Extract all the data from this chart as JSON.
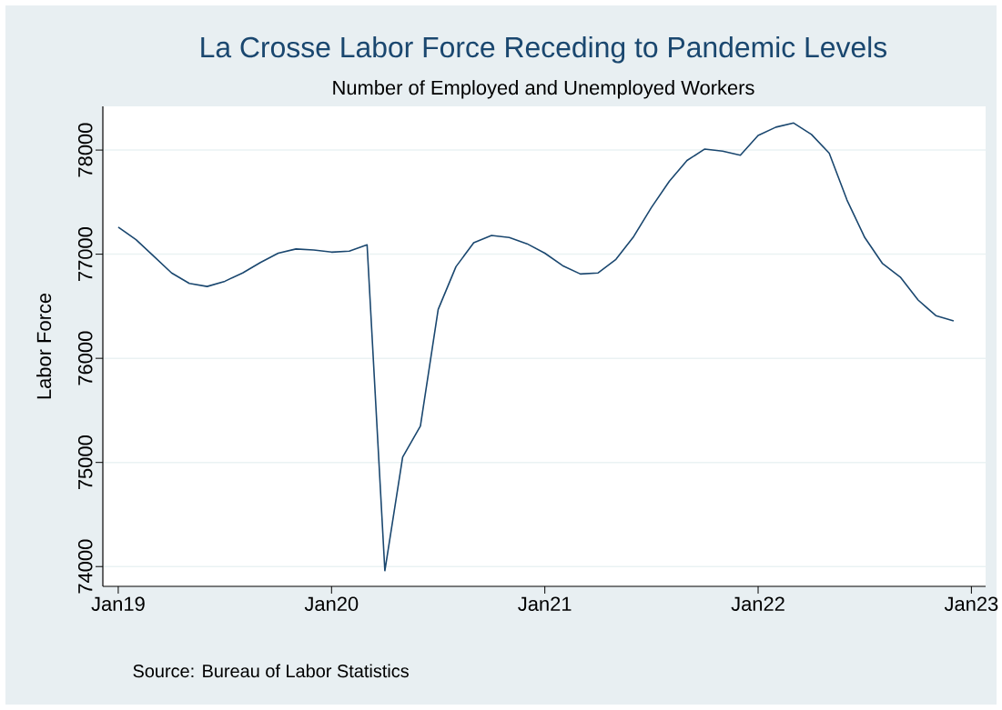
{
  "chart_data": {
    "type": "line",
    "title": "La Crosse Labor Force Receding to Pandemic Levels",
    "subtitle": "Number of Employed and Unemployed Workers",
    "ylabel": "Labor Force",
    "annotations": [
      "Source: Bureau of Labor Statistics"
    ],
    "x": [
      "2019-01",
      "2019-02",
      "2019-03",
      "2019-04",
      "2019-05",
      "2019-06",
      "2019-07",
      "2019-08",
      "2019-09",
      "2019-10",
      "2019-11",
      "2019-12",
      "2020-01",
      "2020-02",
      "2020-03",
      "2020-04",
      "2020-05",
      "2020-06",
      "2020-07",
      "2020-08",
      "2020-09",
      "2020-10",
      "2020-11",
      "2020-12",
      "2021-01",
      "2021-02",
      "2021-03",
      "2021-04",
      "2021-05",
      "2021-06",
      "2021-07",
      "2021-08",
      "2021-09",
      "2021-10",
      "2021-11",
      "2021-12",
      "2022-01",
      "2022-02",
      "2022-03",
      "2022-04",
      "2022-05",
      "2022-06",
      "2022-07",
      "2022-08",
      "2022-09",
      "2022-10",
      "2022-11",
      "2022-12"
    ],
    "series": [
      {
        "color": "#1a476f",
        "values": [
          77260,
          77140,
          76980,
          76820,
          76720,
          76690,
          76740,
          76820,
          76920,
          77010,
          77050,
          77040,
          77020,
          77030,
          77090,
          73960,
          75050,
          75350,
          76470,
          76880,
          77110,
          77180,
          77160,
          77100,
          77010,
          76890,
          76810,
          76820,
          76950,
          77170,
          77450,
          77700,
          77900,
          78010,
          77990,
          77950,
          78140,
          78220,
          78260,
          78150,
          77970,
          77520,
          77160,
          76910,
          76780,
          76560,
          76410,
          76360
        ]
      }
    ],
    "xlim": [
      "2018-12-05",
      "2023-01-25"
    ],
    "xticks": [
      {
        "value": "2019-01",
        "label": "Jan19"
      },
      {
        "value": "2020-01",
        "label": "Jan20"
      },
      {
        "value": "2021-01",
        "label": "Jan21"
      },
      {
        "value": "2022-01",
        "label": "Jan22"
      },
      {
        "value": "2023-01",
        "label": "Jan23"
      }
    ],
    "ylim": [
      73810,
      78420
    ],
    "yticks": [
      74000,
      75000,
      76000,
      77000,
      78000
    ],
    "grid": "y"
  }
}
